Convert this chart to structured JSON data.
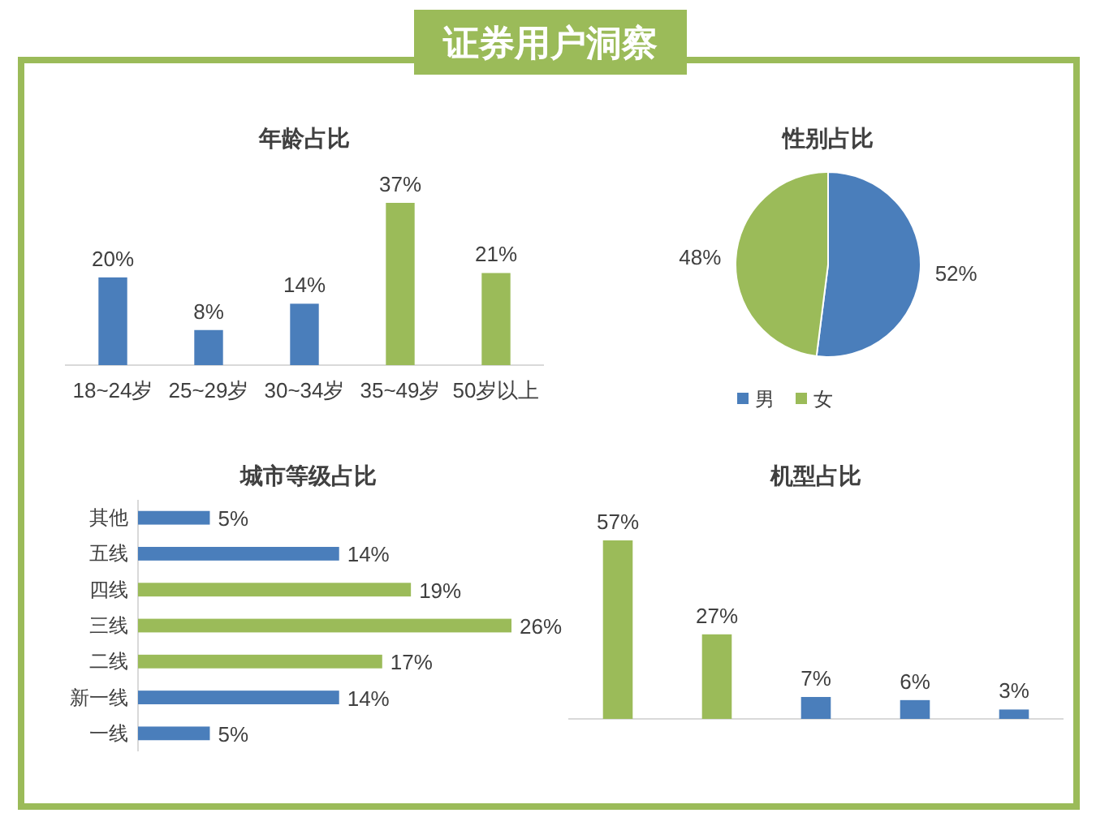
{
  "chart_data": [
    {
      "type": "other",
      "title": "证券用户洞察"
    },
    {
      "type": "bar",
      "title": "年龄占比",
      "categories": [
        "18~24岁",
        "25~29岁",
        "30~34岁",
        "35~49岁",
        "50岁以上"
      ],
      "values": [
        20,
        8,
        14,
        37,
        21
      ],
      "colors": [
        "#4a7ebb",
        "#4a7ebb",
        "#4a7ebb",
        "#9bbb59",
        "#9bbb59"
      ],
      "value_labels": [
        "20%",
        "8%",
        "14%",
        "37%",
        "21%"
      ]
    },
    {
      "type": "pie",
      "title": "性别占比",
      "categories": [
        "男",
        "女"
      ],
      "values": [
        52,
        48
      ],
      "colors": [
        "#4a7ebb",
        "#9bbb59"
      ],
      "value_labels": [
        "52%",
        "48%"
      ],
      "legend": "bottom"
    },
    {
      "type": "bar",
      "orientation": "horizontal",
      "title": "城市等级占比",
      "categories": [
        "其他",
        "五线",
        "四线",
        "三线",
        "二线",
        "新一线",
        "一线"
      ],
      "values": [
        5,
        14,
        19,
        26,
        17,
        14,
        5
      ],
      "colors": [
        "#4a7ebb",
        "#4a7ebb",
        "#9bbb59",
        "#9bbb59",
        "#9bbb59",
        "#4a7ebb",
        "#4a7ebb"
      ],
      "value_labels": [
        "5%",
        "14%",
        "19%",
        "26%",
        "17%",
        "14%",
        "5%"
      ]
    },
    {
      "type": "bar",
      "title": "机型占比",
      "categories": [
        null,
        null,
        null,
        null,
        null
      ],
      "values": [
        57,
        27,
        7,
        6,
        3
      ],
      "colors": [
        "#9bbb59",
        "#9bbb59",
        "#4a7ebb",
        "#4a7ebb",
        "#4a7ebb"
      ],
      "value_labels": [
        "57%",
        "27%",
        "7%",
        "6%",
        "3%"
      ]
    }
  ]
}
